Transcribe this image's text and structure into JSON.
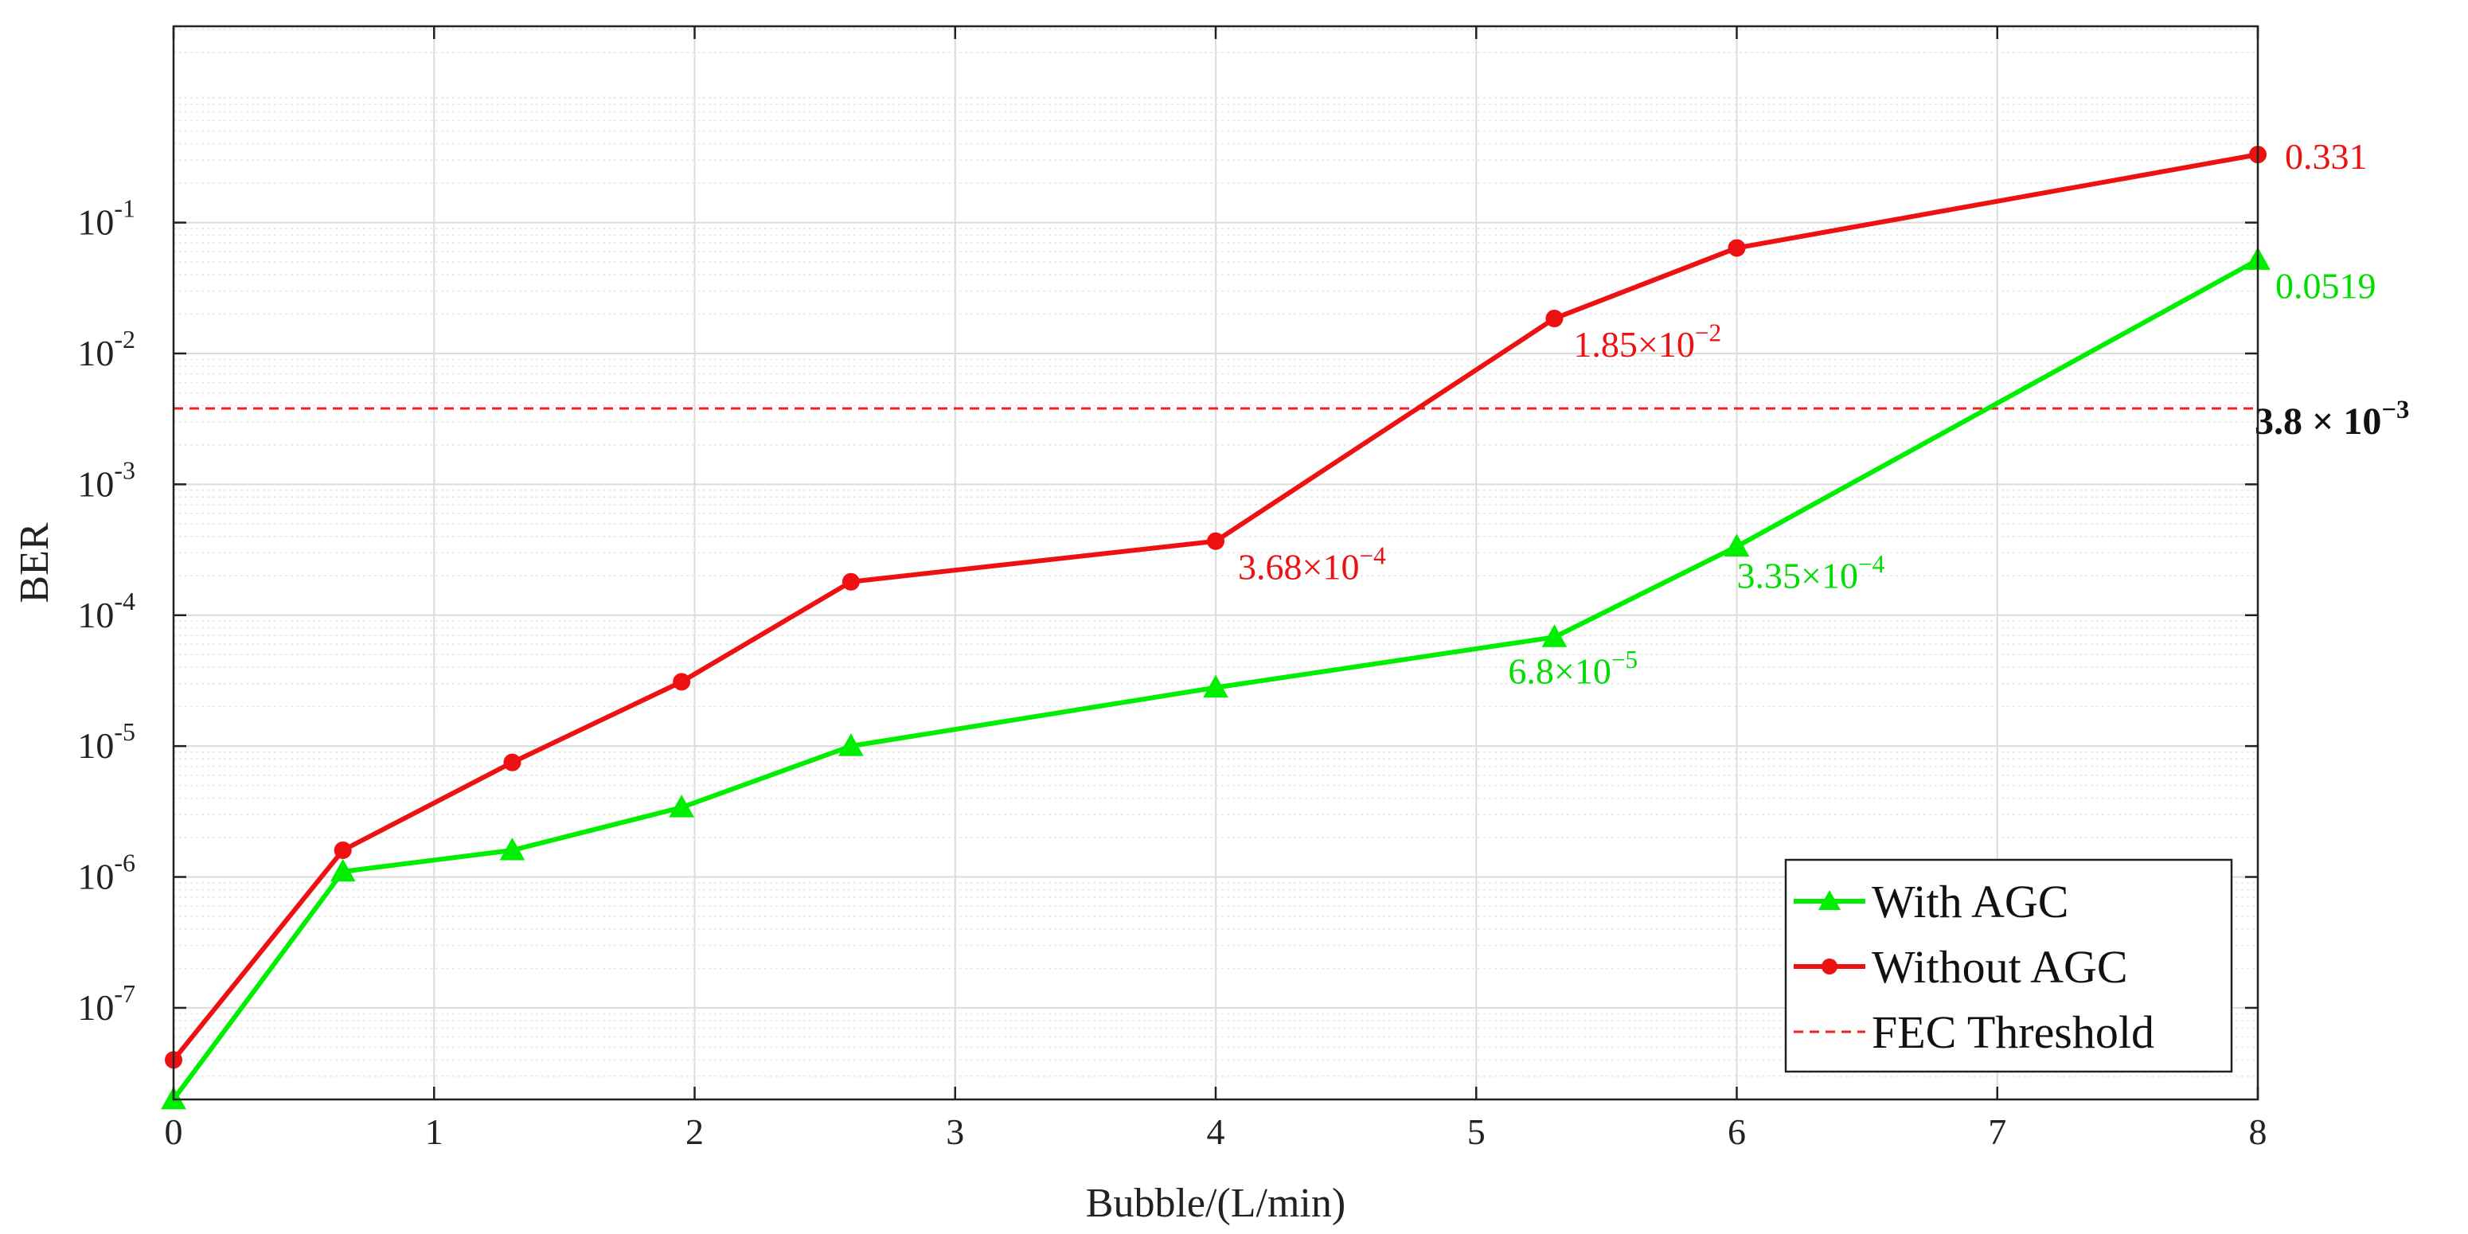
{
  "chart_data": {
    "type": "line",
    "xlabel": "Bubble/(L/min)",
    "ylabel": "BER",
    "xlim": [
      0,
      8
    ],
    "ylim_log10": [
      -7.7,
      0.5
    ],
    "y_scale": "log",
    "grid": true,
    "minor_grid": true,
    "x_ticks": [
      0,
      1,
      2,
      3,
      4,
      5,
      6,
      7,
      8
    ],
    "y_ticks": [
      {
        "base": "10",
        "exp": "-1",
        "value": 0.1
      },
      {
        "base": "10",
        "exp": "-2",
        "value": 0.01
      },
      {
        "base": "10",
        "exp": "-3",
        "value": 0.001
      },
      {
        "base": "10",
        "exp": "-4",
        "value": 0.0001
      },
      {
        "base": "10",
        "exp": "-5",
        "value": 1e-05
      },
      {
        "base": "10",
        "exp": "-6",
        "value": 1e-06
      },
      {
        "base": "10",
        "exp": "-7",
        "value": 1e-07
      }
    ],
    "legend_position": "bottom-right",
    "series": [
      {
        "name": "With AGC",
        "color": "#00ee00",
        "marker": "triangle",
        "x": [
          0,
          0.65,
          1.3,
          1.95,
          2.6,
          4.0,
          5.3,
          6.0,
          8.0
        ],
        "y": [
          2e-08,
          1.1e-06,
          1.6e-06,
          3.4e-06,
          1e-05,
          2.8e-05,
          6.8e-05,
          0.000335,
          0.0519
        ]
      },
      {
        "name": "Without AGC",
        "color": "#ee1111",
        "marker": "circle",
        "x": [
          0,
          0.65,
          1.3,
          1.95,
          2.6,
          4.0,
          5.3,
          6.0,
          8.0
        ],
        "y": [
          4e-08,
          1.6e-06,
          7.5e-06,
          3.1e-05,
          0.00018,
          0.000368,
          0.0185,
          0.064,
          0.331
        ]
      }
    ],
    "threshold": {
      "name": "FEC Threshold",
      "value": 0.0038,
      "color": "#ee2222",
      "label_mantissa": "3.8 × 10",
      "label_exp": "−3"
    },
    "annotations": [
      {
        "series": "Without AGC",
        "x": 8.0,
        "y": 0.331,
        "mantissa": "0.331",
        "exp": "",
        "color": "#ee1111"
      },
      {
        "series": "With AGC",
        "x": 8.0,
        "y": 0.0519,
        "mantissa": "0.0519",
        "exp": "",
        "color": "#00dd00"
      },
      {
        "series": "Without AGC",
        "x": 5.3,
        "y": 0.0185,
        "mantissa": "1.85×10",
        "exp": "−2",
        "color": "#ee1111"
      },
      {
        "series": "Without AGC",
        "x": 4.0,
        "y": 0.000368,
        "mantissa": "3.68×10",
        "exp": "−4",
        "color": "#ee1111"
      },
      {
        "series": "With AGC",
        "x": 6.0,
        "y": 0.000335,
        "mantissa": "3.35×10",
        "exp": "−4",
        "color": "#00dd00"
      },
      {
        "series": "With AGC",
        "x": 5.3,
        "y": 6.8e-05,
        "mantissa": "6.8×10",
        "exp": "−5",
        "color": "#00dd00"
      }
    ]
  }
}
